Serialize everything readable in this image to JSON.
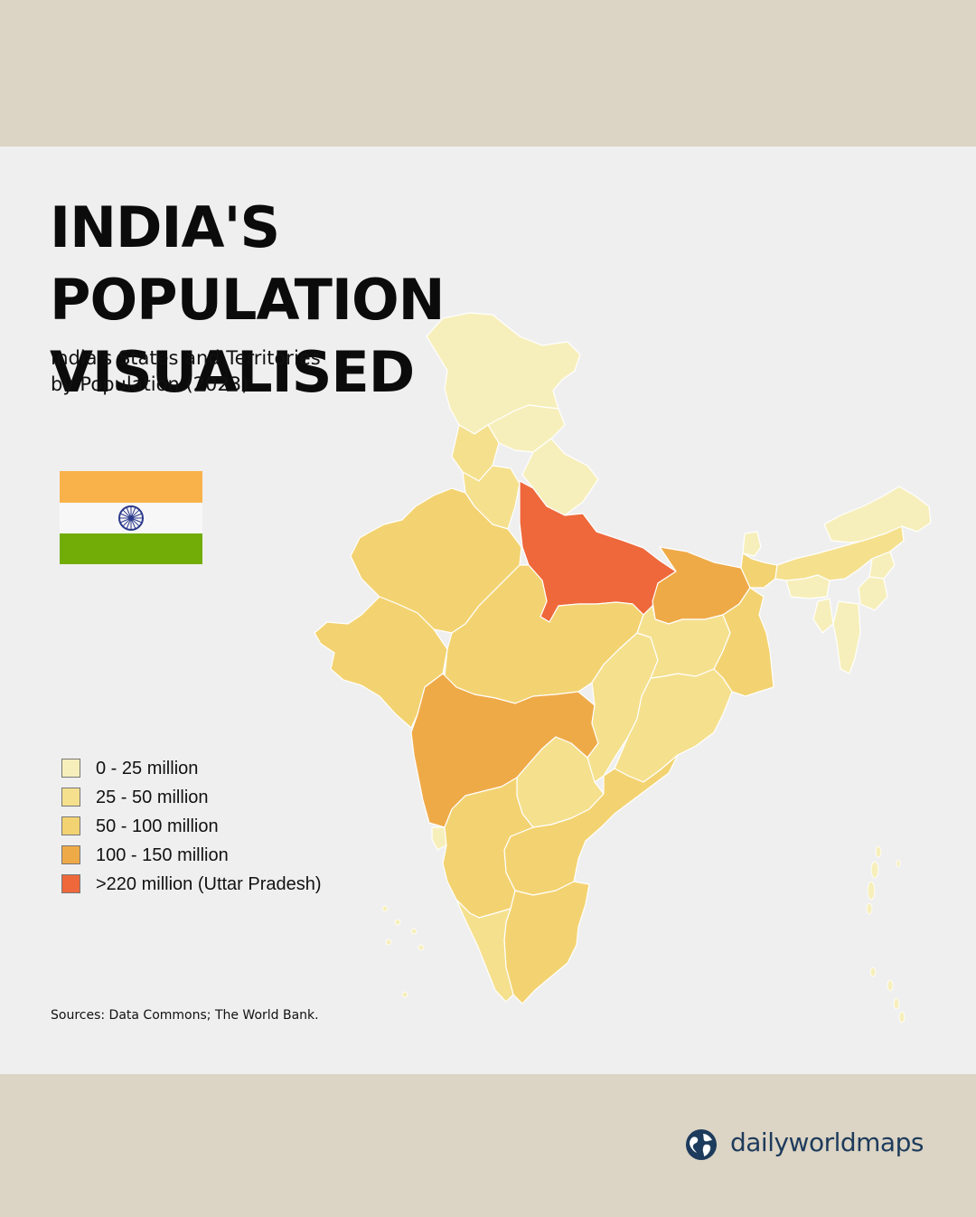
{
  "title_lines": [
    "INDIA'S POPULATION",
    "VISUALISED"
  ],
  "subtitle_lines": [
    "India's States and Territories",
    "by Population (2023)"
  ],
  "flag": {
    "colors": [
      "#f9b24a",
      "#f7f7f7",
      "#72ad07"
    ],
    "wheel_color": "#2b3a8c"
  },
  "legend": [
    {
      "label": "0 - 25 million",
      "color": "#f7efbb"
    },
    {
      "label": "25 - 50 million",
      "color": "#f5e08e"
    },
    {
      "label": "50 - 100 million",
      "color": "#f3d371"
    },
    {
      "label": "100 - 150 million",
      "color": "#efaa48"
    },
    {
      "label": ">220 million (Uttar Pradesh)",
      "color": "#ee683b"
    }
  ],
  "sources": "Sources: Data Commons; The World Bank.",
  "brand": {
    "name": "dailyworldmaps",
    "icon": "globe-icon"
  }
}
